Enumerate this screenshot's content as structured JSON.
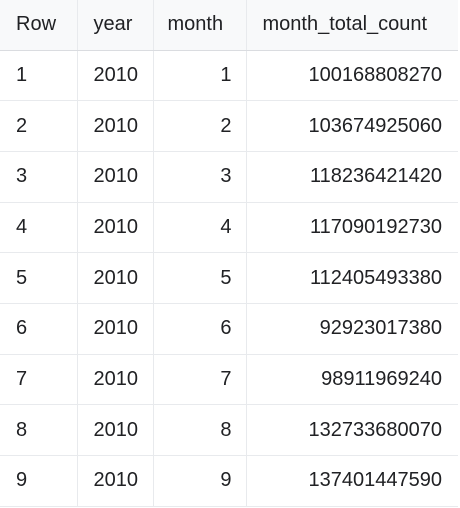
{
  "table": {
    "columns": [
      "Row",
      "year",
      "month",
      "month_total_count"
    ],
    "rows": [
      [
        "1",
        "2010",
        "1",
        "100168808270"
      ],
      [
        "2",
        "2010",
        "2",
        "103674925060"
      ],
      [
        "3",
        "2010",
        "3",
        "118236421420"
      ],
      [
        "4",
        "2010",
        "4",
        "117090192730"
      ],
      [
        "5",
        "2010",
        "5",
        "112405493380"
      ],
      [
        "6",
        "2010",
        "6",
        "92923017380"
      ],
      [
        "7",
        "2010",
        "7",
        "98911969240"
      ],
      [
        "8",
        "2010",
        "8",
        "132733680070"
      ],
      [
        "9",
        "2010",
        "9",
        "137401447590"
      ]
    ]
  }
}
